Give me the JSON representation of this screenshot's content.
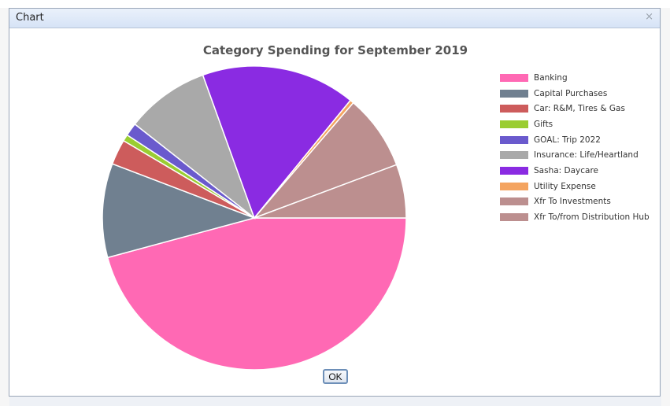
{
  "dialog": {
    "title": "Chart",
    "close_icon": "close-icon",
    "ok_label": "OK"
  },
  "chart_data": {
    "type": "pie",
    "title": "Category Spending for September 2019",
    "legend_position": "right",
    "categories": [
      "Banking",
      "Capital Purchases",
      "Car: R&M, Tires & Gas",
      "Gifts",
      "GOAL: Trip 2022",
      "Insurance: Life/Heartland",
      "Sasha: Daycare",
      "Utility Expense",
      "Xfr To Investments",
      "Xfr To/from Distribution Hub"
    ],
    "values": [
      45.8,
      10.0,
      2.7,
      0.7,
      1.4,
      8.9,
      16.4,
      0.4,
      8.0,
      5.7
    ],
    "colors": [
      "#ff69b4",
      "#708090",
      "#cd5c5c",
      "#9acd32",
      "#6a5acd",
      "#a9a9a9",
      "#8a2be2",
      "#f4a460",
      "#bc8f8f",
      "#bc8f8f"
    ]
  }
}
